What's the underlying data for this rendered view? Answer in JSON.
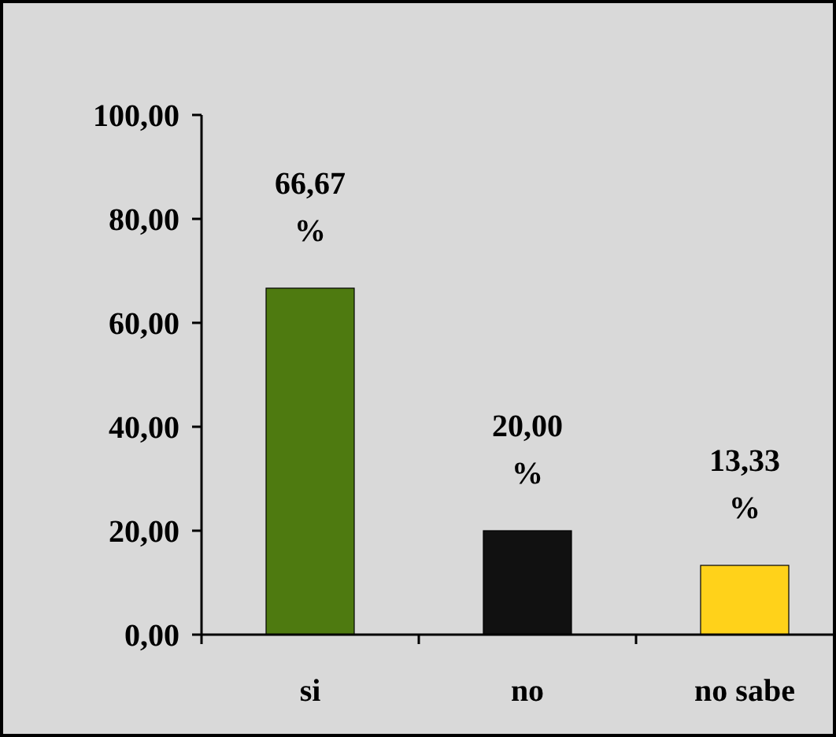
{
  "chart_data": {
    "type": "bar",
    "categories": [
      "si",
      "no",
      "no sabe"
    ],
    "values": [
      66.67,
      20.0,
      13.33
    ],
    "colors": [
      "#4e7a10",
      "#111111",
      "#ffd21a"
    ],
    "ylim": [
      0,
      100
    ],
    "yticks": [
      {
        "value": 0,
        "label": "0,00"
      },
      {
        "value": 20,
        "label": "20,00"
      },
      {
        "value": 40,
        "label": "40,00"
      },
      {
        "value": 60,
        "label": "60,00"
      },
      {
        "value": 80,
        "label": "80,00"
      },
      {
        "value": 100,
        "label": "100,00"
      }
    ],
    "value_labels": [
      "66,67 %",
      "20,00 %",
      "13,33 %"
    ]
  }
}
